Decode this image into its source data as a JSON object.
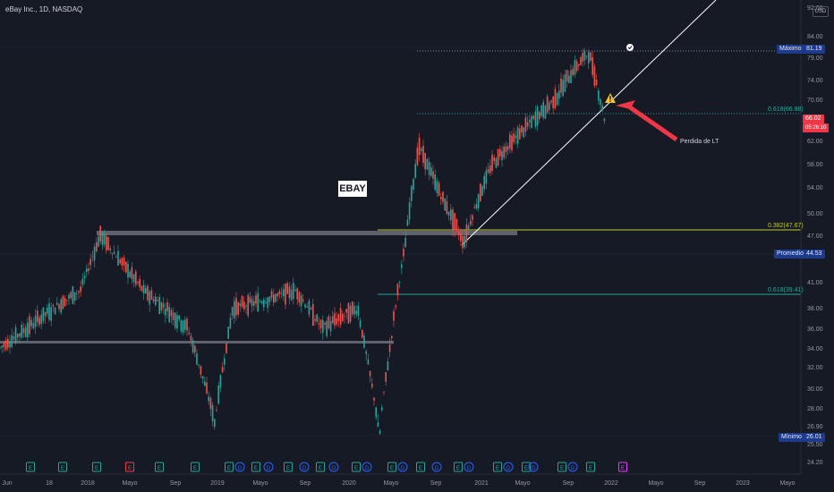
{
  "symbol": {
    "title": "eBay Inc., 1D, NASDAQ",
    "currency": "USD"
  },
  "chart_label": "EBAY",
  "annotation": "Perdida de LT",
  "price_axis": {
    "ticks": [
      "92.00",
      "84.00",
      "79.00",
      "74.00",
      "70.00",
      "62.00",
      "58.00",
      "54.00",
      "50.00",
      "47.00",
      "41.00",
      "38.00",
      "36.00",
      "34.00",
      "32.00",
      "30.00",
      "28.00",
      "26.90",
      "25.50",
      "24.20"
    ],
    "last_price": "66.02",
    "timer": "05:26:10"
  },
  "time_axis": {
    "ticks": [
      "Jun",
      "18",
      "2018",
      "Mayo",
      "Sep",
      "2019",
      "Mayo",
      "Sep",
      "2020",
      "Mayo",
      "Sep",
      "2021",
      "Mayo",
      "Sep",
      "2022",
      "Mayo",
      "Sep",
      "2023",
      "Mayo"
    ]
  },
  "levels": {
    "max": {
      "name": "Máximo",
      "value": "81.19"
    },
    "avg": {
      "name": "Promedio",
      "value": "44.53"
    },
    "min": {
      "name": "Mínimo",
      "value": "26.01"
    }
  },
  "fibs": [
    {
      "label": "0.618(66.88)",
      "color": "#26a69a"
    },
    {
      "label": "0.382(47.67)",
      "color": "#c0ca33"
    },
    {
      "label": "0.618(39.41)",
      "color": "#26a69a"
    }
  ],
  "events": [
    "E",
    "E",
    "E",
    "E",
    "E",
    "E",
    "E",
    "D",
    "E",
    "D",
    "E",
    "D",
    "E",
    "D",
    "E",
    "D",
    "E",
    "D",
    "E",
    "D",
    "E",
    "D",
    "E",
    "D",
    "E",
    "D",
    "E",
    "D",
    "E"
  ],
  "colors": {
    "up": "#26a69a",
    "down": "#ef5350",
    "bg": "#161a25",
    "accent": "#f23645"
  },
  "chart_data": {
    "type": "line",
    "x": [
      "2017-06",
      "2018-01",
      "2018-03",
      "2018-06",
      "2018-09",
      "2018-12",
      "2019-03",
      "2019-06",
      "2019-09",
      "2019-12",
      "2020-02",
      "2020-03",
      "2020-05",
      "2020-07",
      "2020-09",
      "2020-11",
      "2021-01",
      "2021-03",
      "2021-06",
      "2021-08",
      "2021-10",
      "2021-11"
    ],
    "values": [
      34,
      40,
      47,
      40,
      36,
      27,
      38,
      39,
      40,
      36,
      38,
      26,
      45,
      61,
      52,
      46,
      58,
      65,
      70,
      76,
      80,
      66
    ],
    "ylim": [
      24,
      93
    ]
  }
}
